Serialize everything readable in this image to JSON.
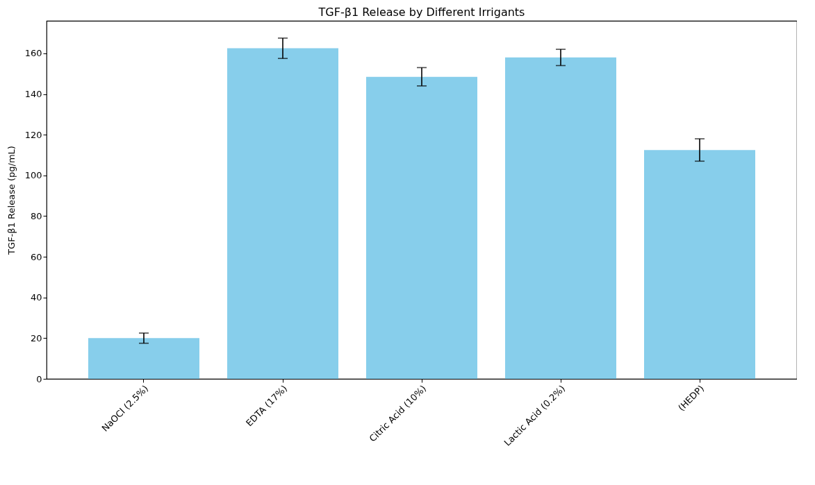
{
  "chart_data": {
    "type": "bar",
    "title": "TGF-β1 Release by Different Irrigants",
    "ylabel": "TGF-β1 Release (pg/mL)",
    "categories": [
      "NaOCl (2.5%)",
      "EDTA (17%)",
      "Citric Acid (10%)",
      "Lactic Acid (0.2%)",
      "(HEDP)"
    ],
    "values": [
      20,
      162.5,
      148.5,
      158,
      112.5
    ],
    "errors": [
      2.5,
      5,
      4.5,
      4,
      5.5
    ],
    "color": "#87ceeb",
    "ylim": [
      0,
      176
    ],
    "yticks": [
      0,
      20,
      40,
      60,
      80,
      100,
      120,
      140,
      160
    ],
    "grid": false
  }
}
